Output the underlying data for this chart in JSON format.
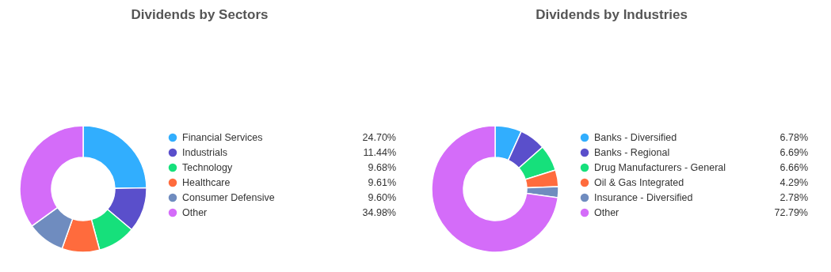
{
  "chart_data": [
    {
      "type": "donut",
      "title": "Dividends by Sectors",
      "legend": "right",
      "categories": [
        "Financial Services",
        "Industrials",
        "Technology",
        "Healthcare",
        "Consumer Defensive",
        "Other"
      ],
      "values": [
        24.7,
        11.44,
        9.68,
        9.61,
        9.6,
        34.98
      ],
      "value_labels": [
        "24.70%",
        "11.44%",
        "9.68%",
        "9.61%",
        "9.60%",
        "34.98%"
      ],
      "colors": [
        "#31aefe",
        "#5a4fcb",
        "#16e07b",
        "#ff6b3d",
        "#6f8cbf",
        "#d46cf9"
      ]
    },
    {
      "type": "donut",
      "title": "Dividends by Industries",
      "legend": "right",
      "categories": [
        "Banks - Diversified",
        "Banks - Regional",
        "Drug Manufacturers - General",
        "Oil & Gas Integrated",
        "Insurance - Diversified",
        "Other"
      ],
      "values": [
        6.78,
        6.69,
        6.66,
        4.29,
        2.78,
        72.79
      ],
      "value_labels": [
        "6.78%",
        "6.69%",
        "6.66%",
        "4.29%",
        "2.78%",
        "72.79%"
      ],
      "colors": [
        "#31aefe",
        "#5a4fcb",
        "#16e07b",
        "#ff6b3d",
        "#6f8cbf",
        "#d46cf9"
      ]
    }
  ]
}
